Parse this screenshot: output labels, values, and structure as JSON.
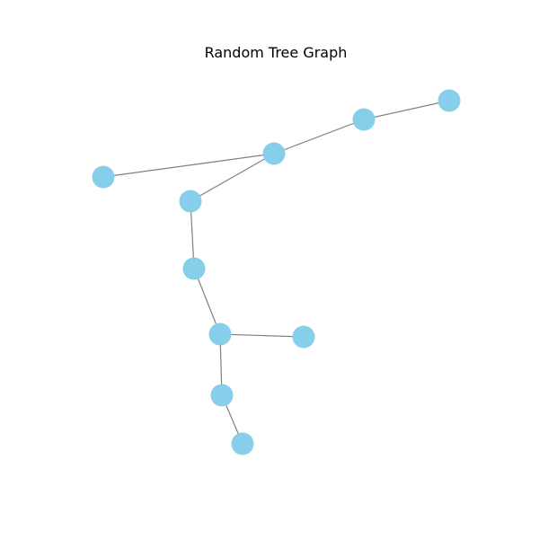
{
  "title": "Random Tree Graph",
  "colors": {
    "node_fill": "#87ceeb",
    "edge_stroke": "#808080",
    "background": "#ffffff"
  },
  "graph": {
    "node_count": 10,
    "nodes": [
      "n0",
      "n1",
      "n2",
      "n3",
      "n4",
      "n5",
      "n6",
      "n7",
      "n8",
      "n9"
    ],
    "edges": [
      [
        "n0",
        "n1"
      ],
      [
        "n1",
        "n2"
      ],
      [
        "n2",
        "n3"
      ],
      [
        "n2",
        "n4"
      ],
      [
        "n4",
        "n5"
      ],
      [
        "n5",
        "n6"
      ],
      [
        "n6",
        "n7"
      ],
      [
        "n6",
        "n8"
      ],
      [
        "n8",
        "n9"
      ]
    ]
  }
}
